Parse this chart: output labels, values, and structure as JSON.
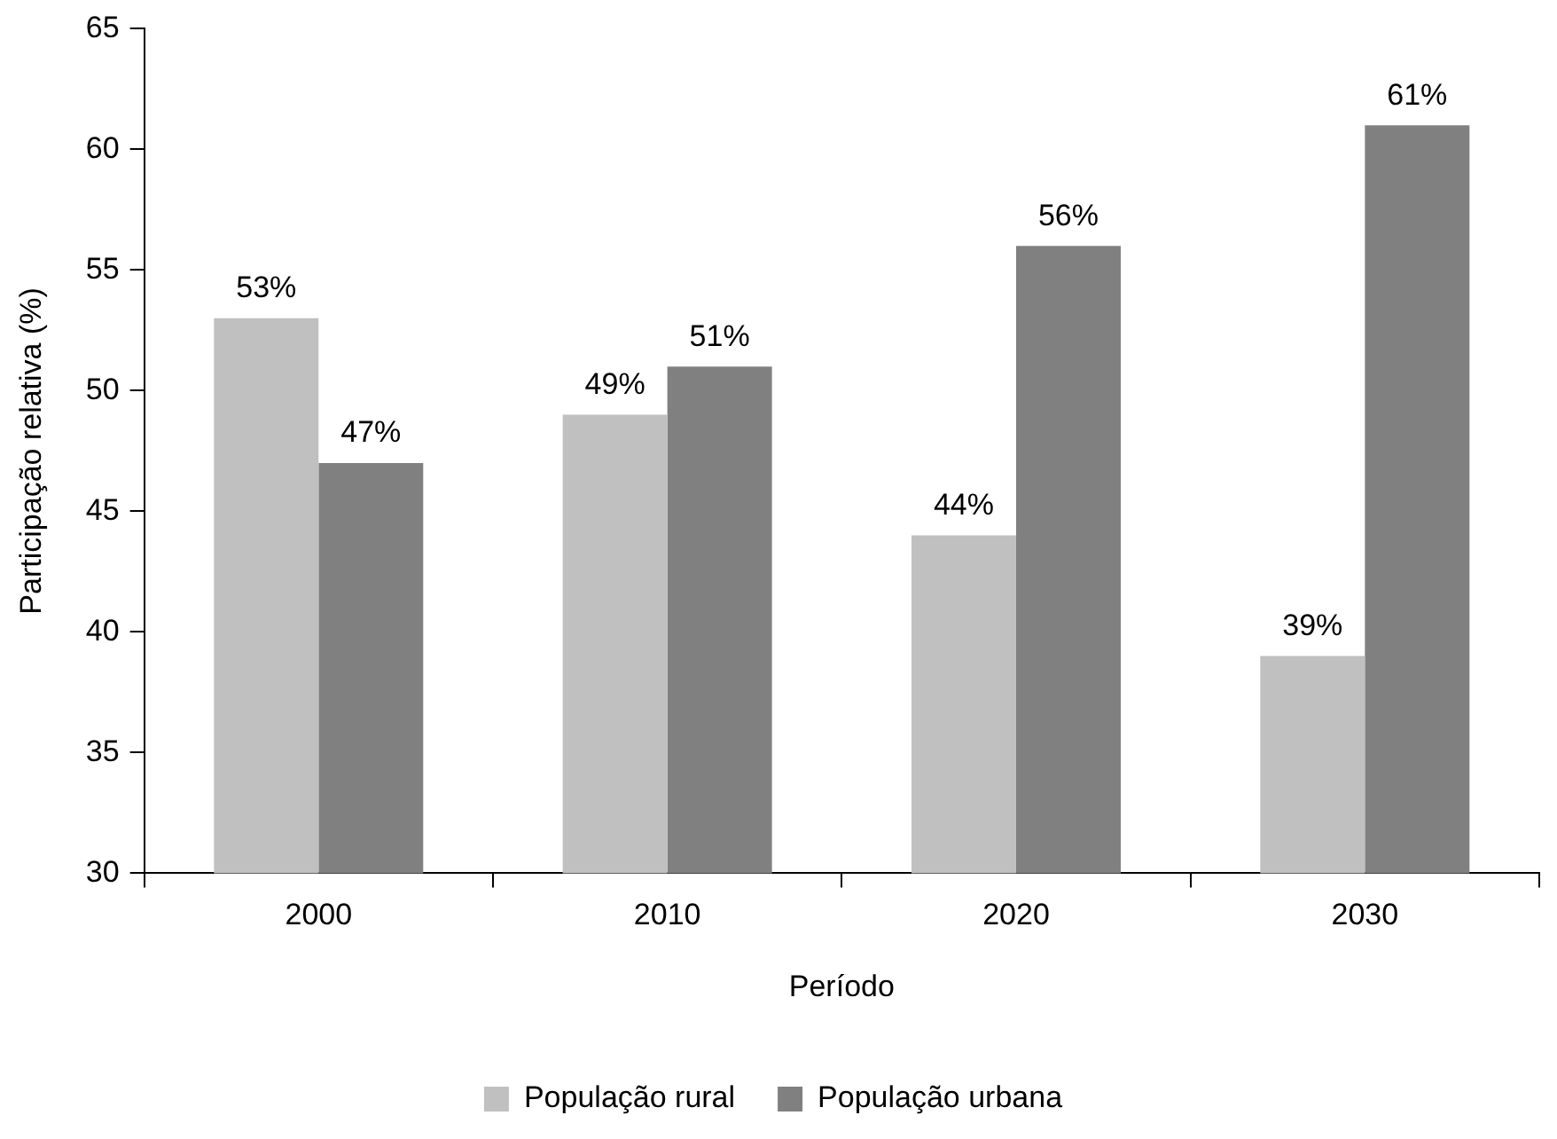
{
  "chart_data": {
    "type": "bar",
    "xlabel": "Período",
    "ylabel": "Participação relativa (%)",
    "categories": [
      "2000",
      "2010",
      "2020",
      "2030"
    ],
    "series": [
      {
        "name": "População rural",
        "color": "#c0c0c0",
        "values": [
          53,
          49,
          44,
          39
        ],
        "value_labels": [
          "53%",
          "49%",
          "44%",
          "39%"
        ]
      },
      {
        "name": "População urbana",
        "color": "#808080",
        "values": [
          47,
          51,
          56,
          61
        ],
        "value_labels": [
          "47%",
          "51%",
          "56%",
          "61%"
        ]
      }
    ],
    "ylim": [
      30,
      65
    ],
    "yticks": [
      30,
      35,
      40,
      45,
      50,
      55,
      60,
      65
    ],
    "grid": false,
    "legend": "bottom"
  }
}
